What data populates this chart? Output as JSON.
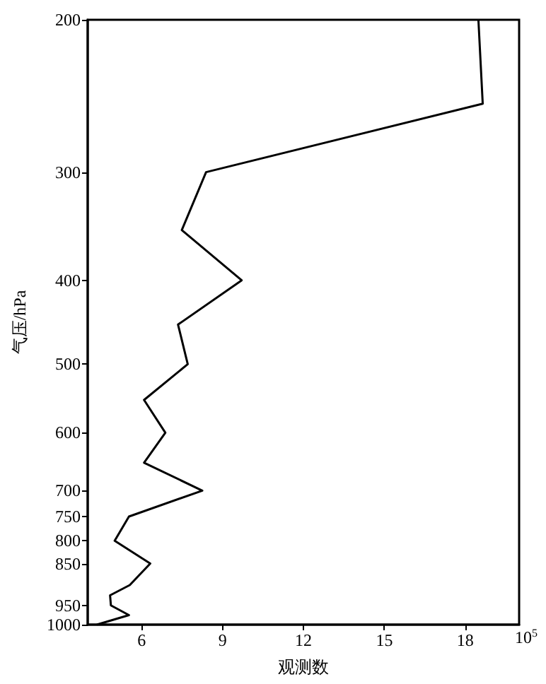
{
  "chart_data": {
    "type": "line",
    "xlabel": "观测数",
    "ylabel": "气压/hPa",
    "color": "#000000",
    "x": [
      18.49,
      18.65,
      8.39,
      7.49,
      9.71,
      7.35,
      7.71,
      6.09,
      6.88,
      6.09,
      8.25,
      5.53,
      5.0,
      6.32,
      5.56,
      4.83,
      4.86,
      5.53,
      4.34
    ],
    "values": [
      200,
      250,
      300,
      350,
      400,
      450,
      500,
      550,
      600,
      650,
      700,
      750,
      800,
      850,
      900,
      925,
      950,
      975,
      1000
    ],
    "xlim": [
      4,
      20
    ],
    "xticks": [
      6,
      9,
      12,
      15,
      18
    ],
    "annotations": [
      "10$^{5}$"
    ],
    "ylim": [
      1000,
      200
    ],
    "yticks": [
      200,
      300,
      400,
      500,
      600,
      700,
      750,
      800,
      850,
      950,
      1000
    ],
    "log": "y",
    "grid": false,
    "marker": "none",
    "line_style": "solid"
  }
}
